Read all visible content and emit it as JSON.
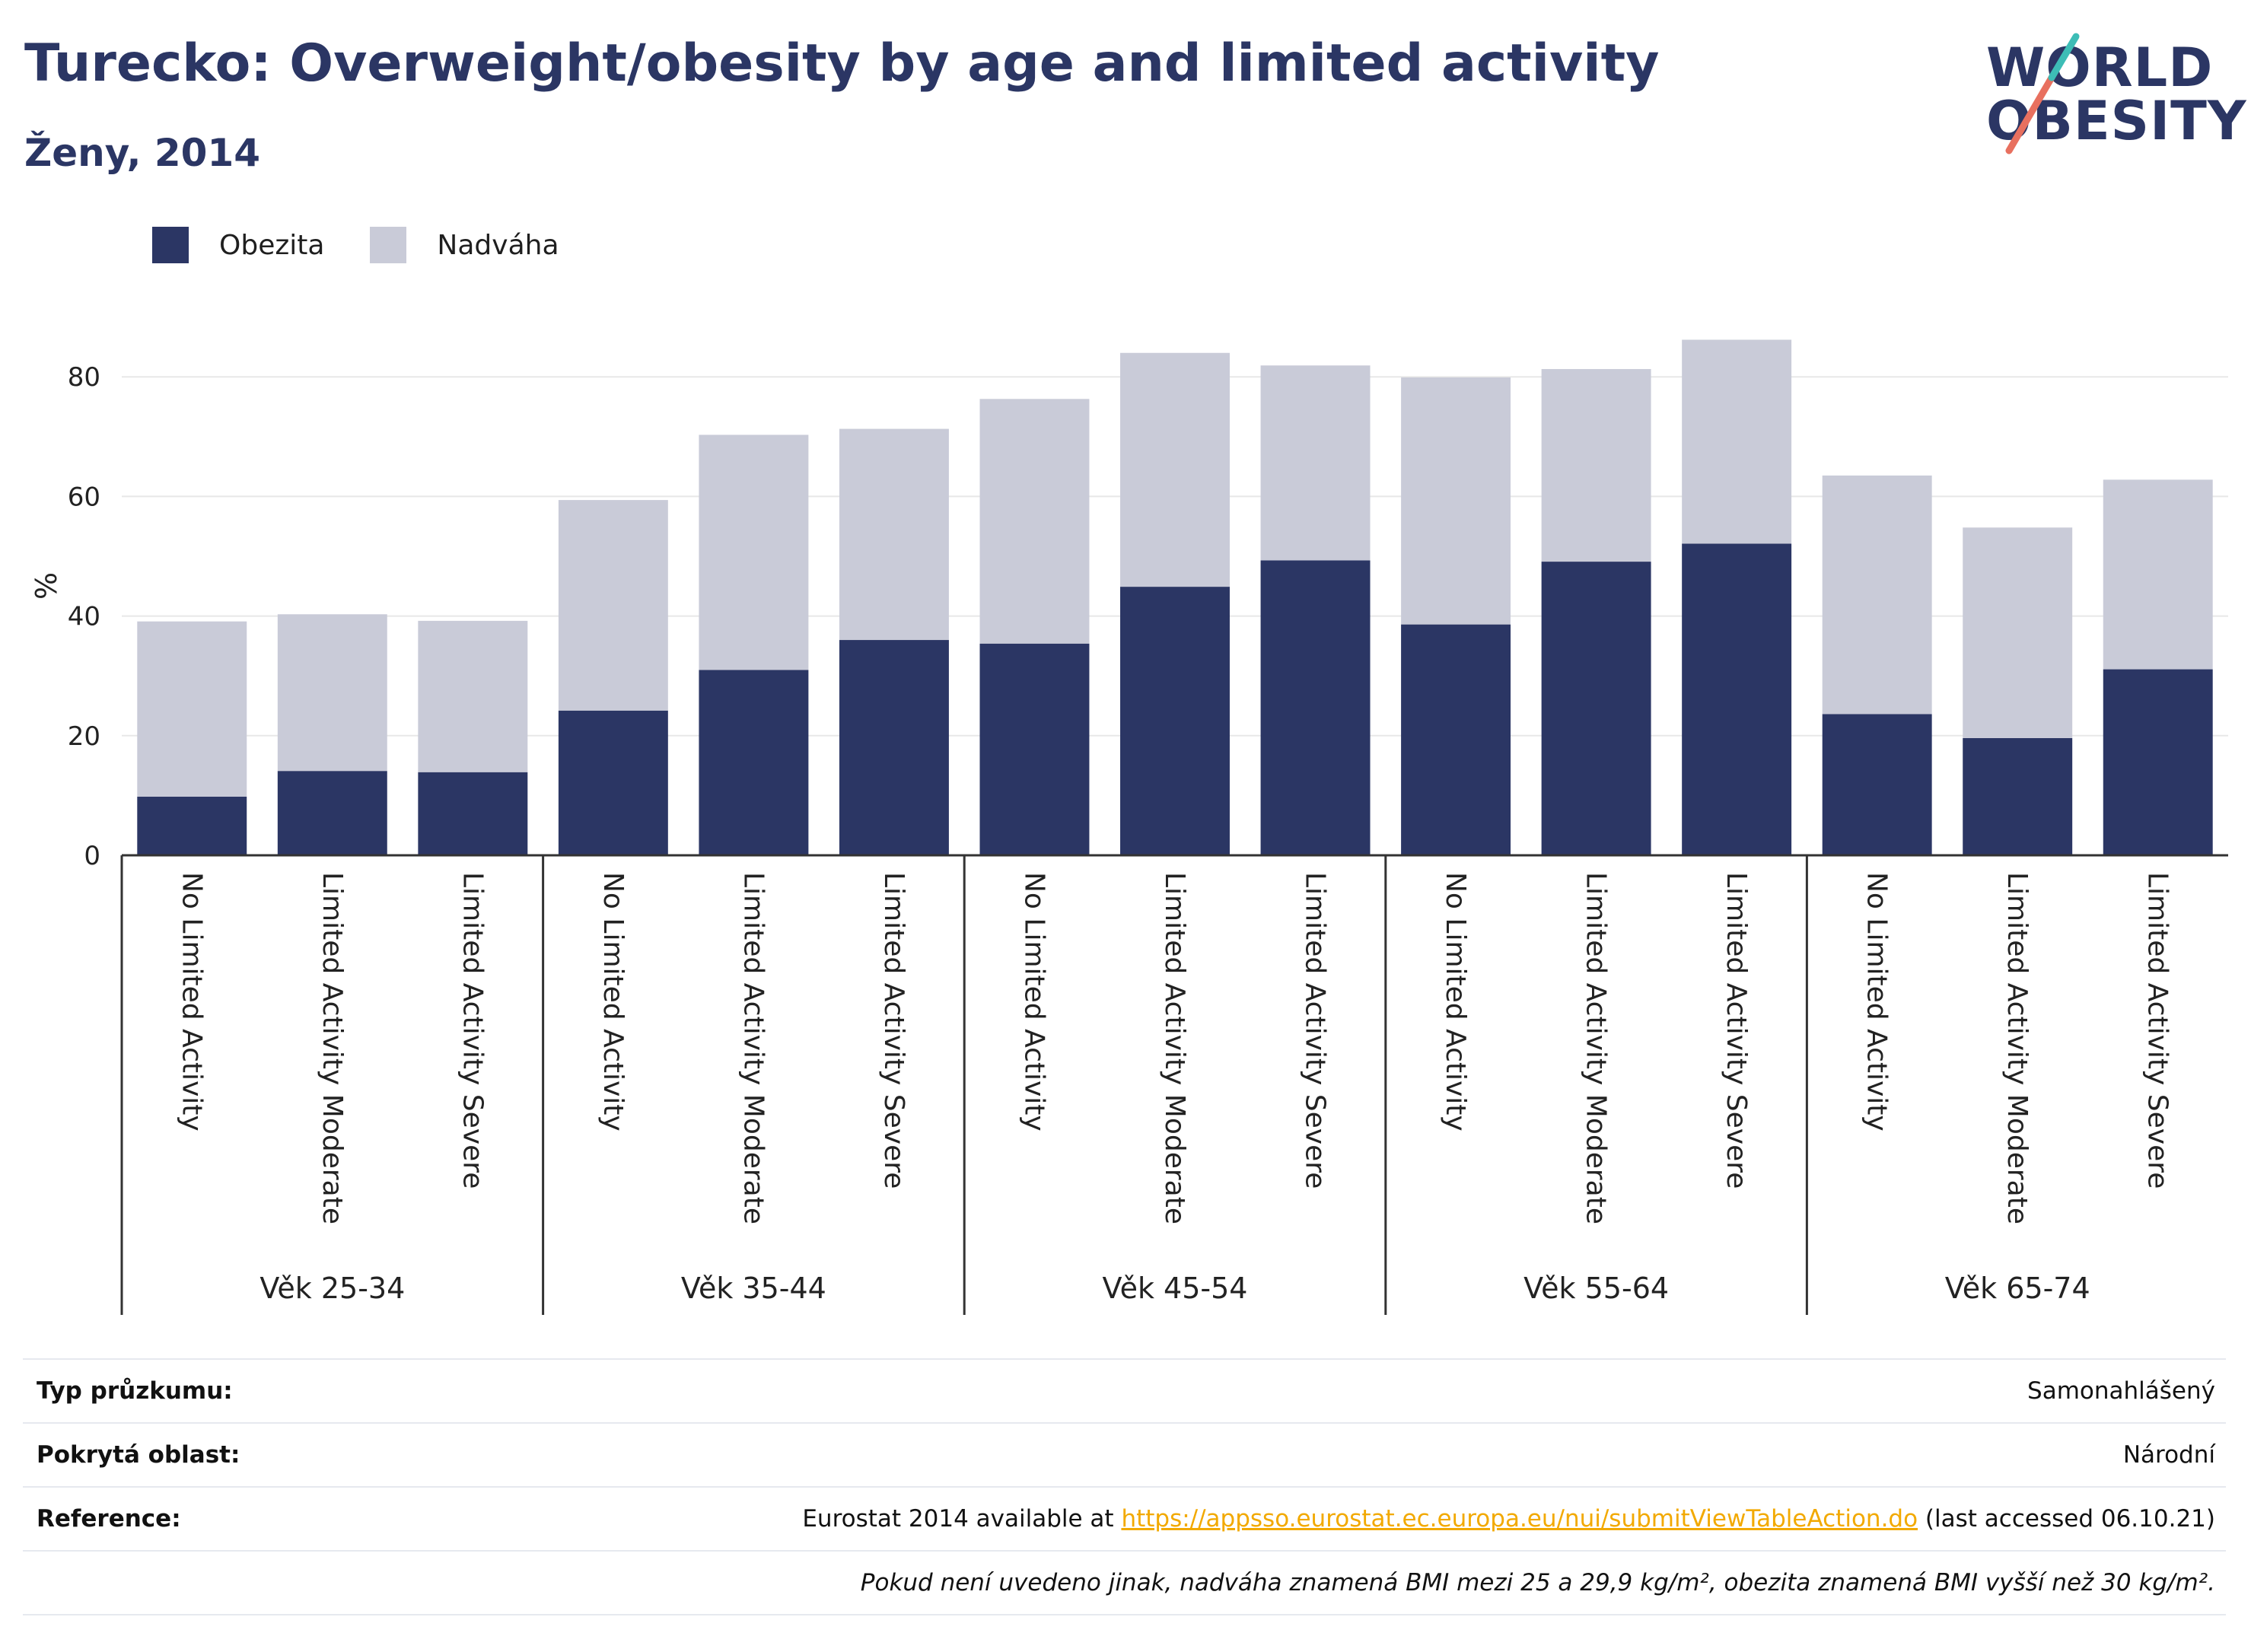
{
  "header": {
    "title": "Turecko: Overweight/obesity by age and limited activity",
    "subtitle": "Ženy, 2014"
  },
  "logo": {
    "line1": "WORLD",
    "line2": "OBESITY"
  },
  "colors": {
    "obesity": "#2b3664",
    "overweight": "#c9cbd8",
    "grid": "#e8e8e8",
    "axis": "#333333",
    "link": "#f2a900"
  },
  "legend": [
    {
      "label": "Obezita",
      "color": "#2b3664"
    },
    {
      "label": "Nadváha",
      "color": "#c9cbd8"
    }
  ],
  "chart_data": {
    "type": "bar",
    "stacked": true,
    "ylabel": "%",
    "ylim": [
      0,
      90
    ],
    "yticks": [
      0,
      20,
      40,
      60,
      80
    ],
    "grid": true,
    "legend_position": "top-left",
    "groups": [
      "Věk 25-34",
      "Věk 35-44",
      "Věk 45-54",
      "Věk 55-64",
      "Věk 65-74"
    ],
    "categories": [
      "No Limited Activity",
      "Limited Activity Moderate",
      "Limited Activity Severe"
    ],
    "series": [
      {
        "name": "Obezita",
        "values": [
          [
            9.8,
            14.1,
            13.9
          ],
          [
            24.2,
            31.0,
            36.0
          ],
          [
            35.4,
            44.9,
            49.3
          ],
          [
            38.6,
            49.1,
            52.1
          ],
          [
            23.6,
            19.6,
            31.1
          ]
        ]
      },
      {
        "name": "Nadváha",
        "values": [
          [
            29.3,
            26.2,
            25.3
          ],
          [
            35.2,
            39.3,
            35.3
          ],
          [
            40.9,
            39.1,
            32.6
          ],
          [
            41.3,
            32.2,
            34.1
          ],
          [
            39.9,
            35.2,
            31.7
          ]
        ]
      }
    ]
  },
  "table": {
    "survey_type": {
      "label": "Typ průzkumu:",
      "value": "Samonahlášený"
    },
    "coverage": {
      "label": "Pokrytá oblast:",
      "value": "Národní"
    },
    "reference": {
      "label": "Reference:",
      "prefix": "Eurostat 2014 available at ",
      "link": "https://appsso.eurostat.ec.europa.eu/nui/submitViewTableAction.do",
      "suffix": " (last accessed 06.10.21)"
    },
    "note": "Pokud není uvedeno jinak, nadváha znamená BMI mezi 25 a 29,9 kg/m², obezita znamená BMI vyšší než 30 kg/m²."
  }
}
